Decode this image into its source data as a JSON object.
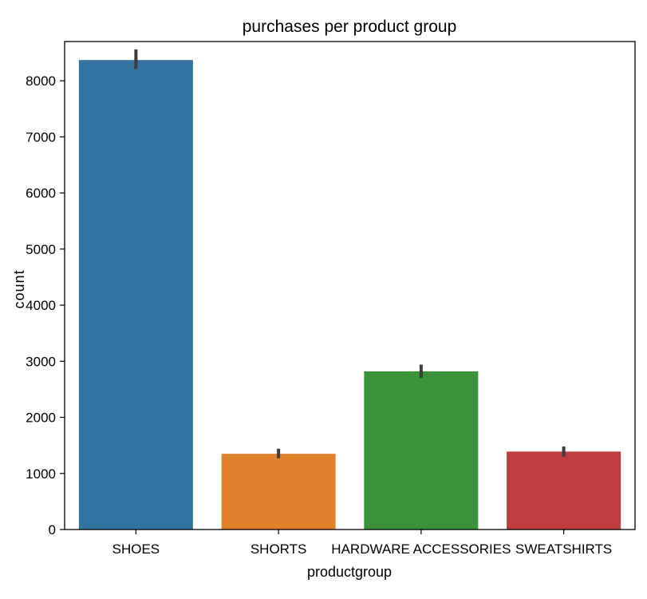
{
  "chart_data": {
    "type": "bar",
    "title": "purchases per product group",
    "xlabel": "productgroup",
    "ylabel": "count",
    "categories": [
      "SHOES",
      "SHORTS",
      "HARDWARE ACCESSORIES",
      "SWEATSHIRTS"
    ],
    "values": [
      8370,
      1350,
      2820,
      1390
    ],
    "error_low": [
      8210,
      1270,
      2700,
      1300
    ],
    "error_high": [
      8560,
      1440,
      2940,
      1480
    ],
    "colors": [
      "#3274a1",
      "#e1812c",
      "#3a923a",
      "#c03d3e"
    ],
    "ylim": [
      0,
      8700
    ],
    "yticks": [
      0,
      1000,
      2000,
      3000,
      4000,
      5000,
      6000,
      7000,
      8000
    ],
    "ytick_labels": [
      "0",
      "1000",
      "2000",
      "3000",
      "4000",
      "5000",
      "6000",
      "7000",
      "8000"
    ],
    "grid": false,
    "legend": "none"
  }
}
